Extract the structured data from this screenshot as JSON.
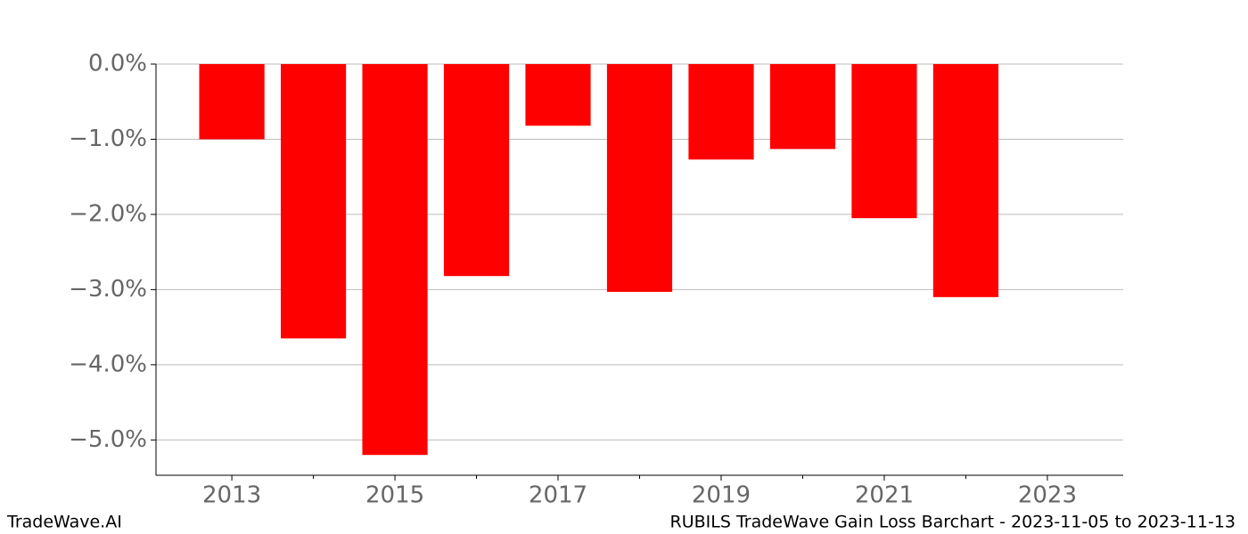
{
  "chart_data": {
    "type": "bar",
    "title": "RUBILS TradeWave Gain Loss Barchart - 2023-11-05 to 2023-11-13",
    "source": "TradeWave.AI",
    "x": [
      2013,
      2014,
      2015,
      2016,
      2017,
      2018,
      2019,
      2020,
      2021,
      2022
    ],
    "values": [
      -1.0,
      -3.65,
      -5.2,
      -2.82,
      -0.82,
      -3.03,
      -1.27,
      -1.13,
      -2.05,
      -3.1
    ],
    "color": "#ff0000",
    "xlim": [
      2012.07,
      2023.93
    ],
    "xticks": [
      2013,
      2015,
      2017,
      2019,
      2021,
      2023
    ],
    "xticks_minor": [
      2014,
      2016,
      2018,
      2020,
      2022
    ],
    "ylim": [
      -5.47,
      0
    ],
    "yticks": [
      {
        "value": 0,
        "label": "0.0%"
      },
      {
        "value": -1,
        "label": "−1.0%"
      },
      {
        "value": -2,
        "label": "−2.0%"
      },
      {
        "value": -3,
        "label": "−3.0%"
      },
      {
        "value": -4,
        "label": "−4.0%"
      },
      {
        "value": -5,
        "label": "−5.0%"
      }
    ],
    "grid": true
  }
}
